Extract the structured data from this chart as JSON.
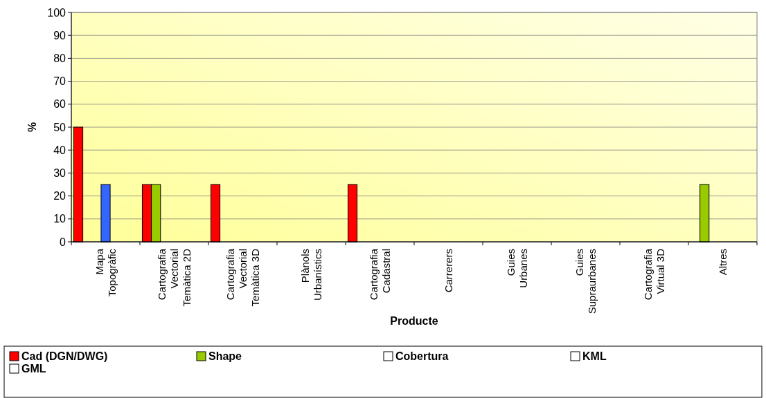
{
  "chart_data": {
    "type": "bar",
    "xlabel": "Producte",
    "ylabel": "%",
    "categories": [
      "Mapa Topogràfic",
      "Cartografia Vectorial Temàtica 2D",
      "Cartografia Vectorial Temàtica 3D",
      "Plànols Urbanístics",
      "Cartografia Cadastral",
      "Carrerers",
      "Guies Urbanes",
      "Guies Supraurbanes",
      "Cartografia Virtual 3D",
      "Altres"
    ],
    "series": [
      {
        "name": "Cad (DGN/DWG)",
        "color": "#ff0000",
        "values": [
          50,
          25,
          25,
          0,
          25,
          0,
          0,
          0,
          0,
          0
        ]
      },
      {
        "name": "Shape",
        "color": "#99cc00",
        "values": [
          0,
          25,
          0,
          0,
          0,
          0,
          0,
          0,
          0,
          25
        ]
      },
      {
        "name": "Cobertura",
        "color": "#ffffff",
        "values": [
          0,
          0,
          0,
          0,
          0,
          0,
          0,
          0,
          0,
          0
        ]
      },
      {
        "color": "#3366ff",
        "values": [
          25,
          0,
          0,
          0,
          0,
          0,
          0,
          0,
          0,
          0
        ]
      },
      {
        "color": "#ffffff",
        "values": [
          0,
          0,
          0,
          0,
          0,
          0,
          0,
          0,
          0,
          0
        ]
      },
      {
        "name": "KML",
        "color": "#ffffff",
        "values": [
          0,
          0,
          0,
          0,
          0,
          0,
          0,
          0,
          0,
          0
        ]
      },
      {
        "name": "GML",
        "color": "#ffffff",
        "values": [
          0,
          0,
          0,
          0,
          0,
          0,
          0,
          0,
          0,
          0
        ]
      }
    ],
    "ylim": [
      0,
      100
    ],
    "yticks": [
      0,
      10,
      20,
      30,
      40,
      50,
      60,
      70,
      80,
      90,
      100
    ],
    "grid": "y",
    "legend": "bottom"
  }
}
